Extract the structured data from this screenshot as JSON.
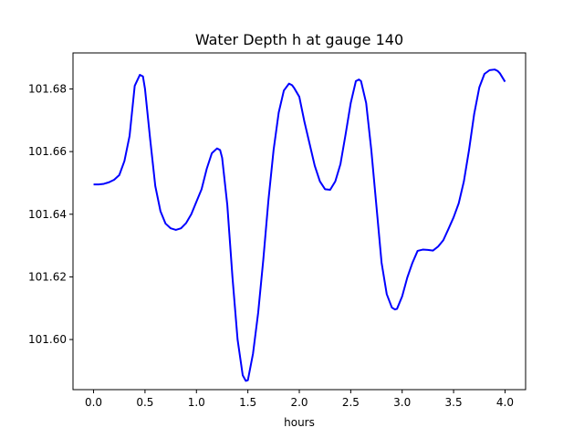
{
  "chart_data": {
    "type": "line",
    "title": "Water Depth h at gauge 140",
    "xlabel": "hours",
    "ylabel": "",
    "xlim": [
      -0.2,
      4.2
    ],
    "ylim": [
      101.584,
      101.6915
    ],
    "xticks": [
      0.0,
      0.5,
      1.0,
      1.5,
      2.0,
      2.5,
      3.0,
      3.5,
      4.0
    ],
    "xtick_labels": [
      "0.0",
      "0.5",
      "1.0",
      "1.5",
      "2.0",
      "2.5",
      "3.0",
      "3.5",
      "4.0"
    ],
    "yticks": [
      101.6,
      101.62,
      101.64,
      101.66,
      101.68
    ],
    "ytick_labels": [
      "101.60",
      "101.62",
      "101.64",
      "101.66",
      "101.68"
    ],
    "grid": false,
    "series": [
      {
        "color": "#0000ff",
        "x": [
          0.0,
          0.05,
          0.1,
          0.15,
          0.2,
          0.25,
          0.3,
          0.35,
          0.4,
          0.45,
          0.48,
          0.5,
          0.55,
          0.6,
          0.65,
          0.7,
          0.75,
          0.8,
          0.85,
          0.9,
          0.95,
          1.0,
          1.05,
          1.1,
          1.15,
          1.2,
          1.23,
          1.25,
          1.3,
          1.35,
          1.4,
          1.45,
          1.48,
          1.5,
          1.55,
          1.6,
          1.65,
          1.7,
          1.75,
          1.8,
          1.85,
          1.9,
          1.93,
          1.95,
          2.0,
          2.05,
          2.1,
          2.15,
          2.2,
          2.25,
          2.3,
          2.35,
          2.4,
          2.45,
          2.5,
          2.55,
          2.58,
          2.6,
          2.65,
          2.7,
          2.75,
          2.8,
          2.85,
          2.9,
          2.93,
          2.95,
          3.0,
          3.05,
          3.1,
          3.15,
          3.2,
          3.25,
          3.3,
          3.35,
          3.4,
          3.45,
          3.5,
          3.55,
          3.6,
          3.65,
          3.7,
          3.75,
          3.8,
          3.85,
          3.9,
          3.93,
          3.95,
          4.0
        ],
        "y": [
          101.6495,
          101.6495,
          101.6497,
          101.6502,
          101.651,
          101.6525,
          101.657,
          101.665,
          101.681,
          101.6845,
          101.684,
          101.68,
          101.664,
          101.649,
          101.641,
          101.637,
          101.6355,
          101.635,
          101.6355,
          101.6372,
          101.64,
          101.644,
          101.648,
          101.6545,
          101.6595,
          101.661,
          101.6605,
          101.658,
          101.643,
          101.62,
          101.6,
          101.5886,
          101.5868,
          101.587,
          101.5955,
          101.6085,
          101.6255,
          101.6445,
          101.6605,
          101.6725,
          101.6795,
          101.6817,
          101.6812,
          101.6803,
          101.6775,
          101.6695,
          101.6625,
          101.6555,
          101.6505,
          101.648,
          101.6478,
          101.6505,
          101.656,
          101.6655,
          101.6755,
          101.6825,
          101.683,
          101.6825,
          101.6755,
          101.6605,
          101.6425,
          101.6245,
          101.6145,
          101.6102,
          101.6096,
          101.6098,
          101.6138,
          101.6198,
          101.6245,
          101.6283,
          101.6287,
          101.6286,
          101.6284,
          101.6297,
          101.6317,
          101.6353,
          101.639,
          101.6435,
          101.6505,
          101.6605,
          101.672,
          101.6805,
          101.6848,
          101.686,
          101.6862,
          101.6857,
          101.685,
          101.6823
        ]
      }
    ]
  }
}
